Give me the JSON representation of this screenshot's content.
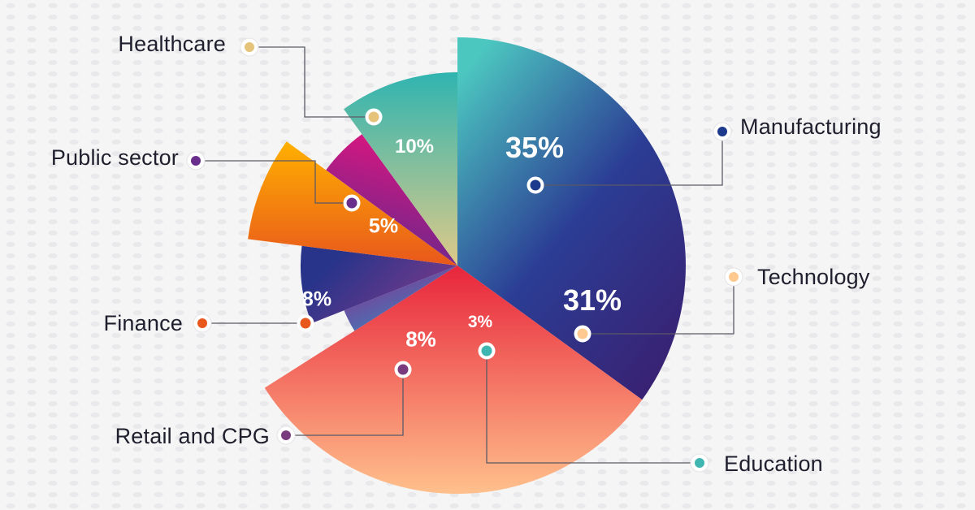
{
  "chart_data": {
    "type": "pie",
    "title": "",
    "slices": [
      {
        "category": "Manufacturing",
        "value": 35,
        "label": "35%",
        "color": "#2a3a8c",
        "colors": [
          "#4cc7c0",
          "#2b3d94",
          "#3a1f70"
        ]
      },
      {
        "category": "Technology",
        "value": 31,
        "label": "31%",
        "color": "#e8304a",
        "colors": [
          "#e8253b",
          "#ffc08c"
        ]
      },
      {
        "category": "Education",
        "value": 3,
        "label": "3%",
        "color": "#7a3a9a",
        "colors": [
          "#8a2e8e",
          "#2f8fc2"
        ]
      },
      {
        "category": "Retail and CPG",
        "value": 8,
        "label": "8%",
        "color": "#3d3d8c",
        "colors": [
          "#27348a",
          "#7a3a8a"
        ]
      },
      {
        "category": "Finance",
        "value": 8,
        "label": "8%",
        "color": "#f59a10",
        "colors": [
          "#ffb000",
          "#e8571c"
        ]
      },
      {
        "category": "Public sector",
        "value": 5,
        "label": "5%",
        "color": "#8a2a8c",
        "colors": [
          "#e0157e",
          "#5c2a8e"
        ]
      },
      {
        "category": "Healthcare",
        "value": 10,
        "label": "10%",
        "color": "#7cc0a8",
        "colors": [
          "#2fb4b0",
          "#dfca88"
        ]
      }
    ],
    "legend_dots": {
      "Healthcare": "#e6c37a",
      "Manufacturing": "#1e3a8c",
      "Public sector": "#6a2f8c",
      "Technology": "#ffc98f",
      "Finance": "#e8571c",
      "Retail and CPG": "#7a3a7e",
      "Education": "#3fb6b2"
    }
  }
}
